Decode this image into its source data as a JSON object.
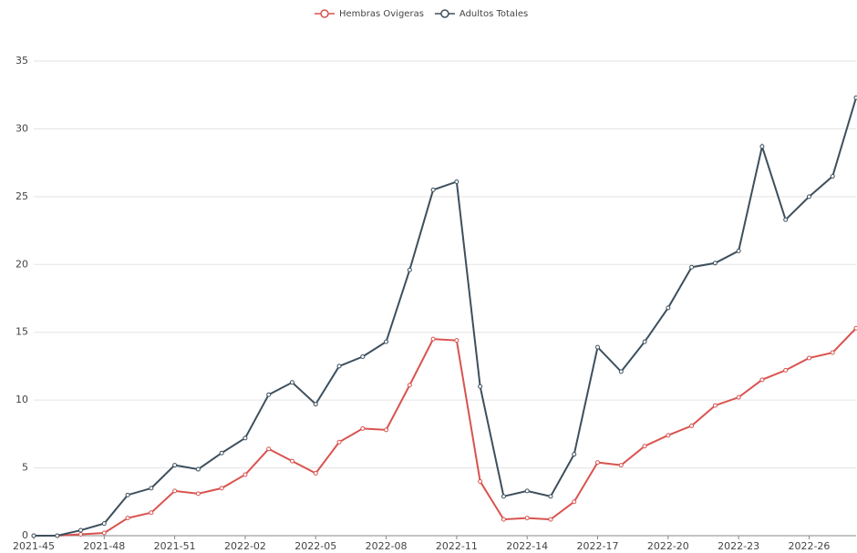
{
  "chart_data": {
    "type": "line",
    "categories": [
      "2021-45",
      null,
      null,
      "2021-48",
      null,
      null,
      "2021-51",
      null,
      null,
      "2022-02",
      null,
      null,
      "2022-05",
      null,
      null,
      "2022-08",
      null,
      null,
      "2022-11",
      null,
      null,
      "2022-14",
      null,
      null,
      "2022-17",
      null,
      null,
      "2022-20",
      null,
      null,
      "2022-23",
      null,
      null,
      "2022-26",
      null,
      null
    ],
    "series": [
      {
        "name": "Hembras Ovigeras",
        "color": "#d9534f",
        "values": [
          0,
          0,
          0.1,
          0.2,
          1.3,
          1.7,
          3.3,
          3.1,
          3.5,
          4.5,
          6.4,
          5.5,
          4.6,
          6.9,
          7.9,
          7.8,
          11.1,
          14.5,
          14.4,
          4.0,
          1.2,
          1.3,
          1.2,
          2.5,
          5.4,
          5.2,
          6.6,
          7.4,
          8.1,
          9.6,
          10.2,
          11.5,
          12.2,
          13.1,
          13.5,
          15.3
        ]
      },
      {
        "name": "Adultos Totales",
        "color": "#3d4f5d",
        "values": [
          0,
          0,
          0.4,
          0.9,
          3.0,
          3.5,
          5.2,
          4.9,
          6.1,
          7.2,
          10.4,
          11.3,
          9.7,
          12.5,
          13.2,
          14.3,
          19.6,
          25.5,
          26.1,
          11.0,
          2.9,
          3.3,
          2.9,
          6.0,
          13.9,
          12.1,
          14.3,
          16.8,
          19.8,
          20.1,
          21.0,
          28.7,
          23.3,
          25.0,
          26.5,
          32.3
        ]
      }
    ],
    "ylim": [
      0,
      35
    ],
    "yticks": [
      0,
      5,
      10,
      15,
      20,
      25,
      30,
      35
    ],
    "grid": true,
    "legend": "top"
  }
}
